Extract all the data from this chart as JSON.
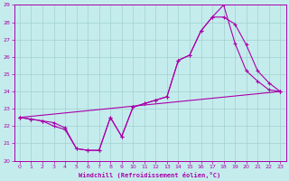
{
  "xlabel": "Windchill (Refroidissement éolien,°C)",
  "xlim": [
    -0.5,
    23.5
  ],
  "ylim": [
    20,
    29
  ],
  "xticks": [
    0,
    1,
    2,
    3,
    4,
    5,
    6,
    7,
    8,
    9,
    10,
    11,
    12,
    13,
    14,
    15,
    16,
    17,
    18,
    19,
    20,
    21,
    22,
    23
  ],
  "yticks": [
    20,
    21,
    22,
    23,
    24,
    25,
    26,
    27,
    28,
    29
  ],
  "bg_color": "#c5eced",
  "grid_color": "#a0d0d0",
  "line_color": "#aa00aa",
  "line1_x": [
    0,
    1,
    2,
    3,
    4,
    5,
    6,
    7,
    8,
    9,
    10,
    11,
    12,
    13,
    14,
    15,
    16,
    17,
    18,
    19,
    20,
    21,
    22,
    23
  ],
  "line1_y": [
    22.5,
    22.4,
    22.3,
    22.2,
    21.9,
    20.7,
    20.6,
    20.6,
    22.5,
    21.4,
    23.1,
    23.3,
    23.5,
    23.7,
    25.8,
    26.1,
    27.5,
    28.3,
    29.0,
    26.8,
    25.2,
    24.6,
    24.1,
    24.0
  ],
  "line2_x": [
    0,
    1,
    2,
    3,
    4,
    5,
    6,
    7,
    8,
    9,
    10,
    11,
    12,
    13,
    14,
    15,
    16,
    17,
    18,
    19,
    20,
    21,
    22,
    23
  ],
  "line2_y": [
    22.5,
    22.4,
    22.3,
    22.0,
    21.8,
    20.7,
    20.6,
    20.6,
    22.5,
    21.4,
    23.1,
    23.3,
    23.5,
    23.7,
    25.8,
    26.1,
    27.5,
    28.3,
    28.3,
    27.9,
    26.7,
    25.2,
    24.5,
    24.0
  ],
  "line3_x": [
    0,
    23
  ],
  "line3_y": [
    22.5,
    24.0
  ]
}
